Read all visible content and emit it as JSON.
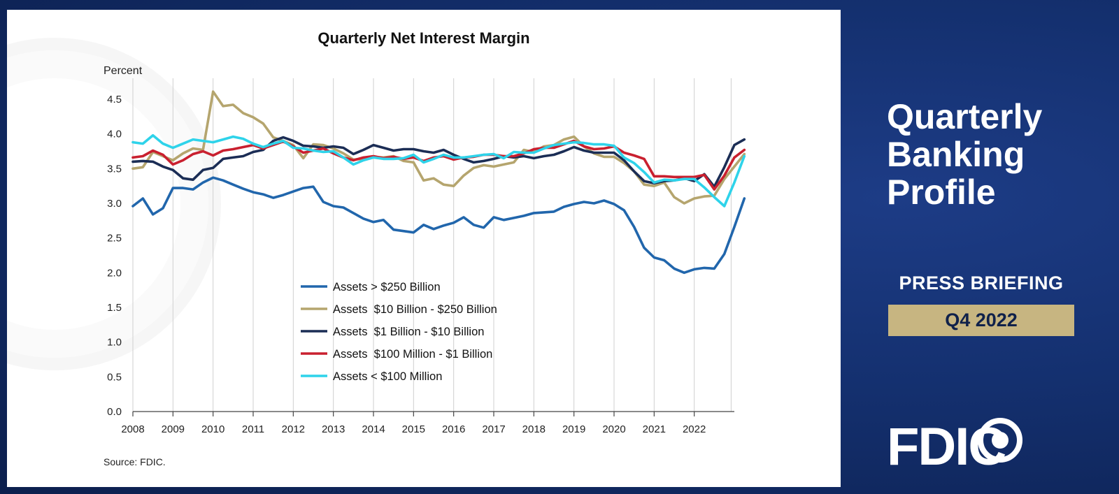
{
  "sidebar": {
    "title_lines": [
      "Quarterly",
      "Banking",
      "Profile"
    ],
    "press_label": "PRESS BRIEFING",
    "quarter_label": "Q4 2022",
    "logo_text": "FDIC"
  },
  "colors": {
    "gold": "#c7b581",
    "navy": "#12275a"
  },
  "chart_data": {
    "type": "line",
    "title": "Quarterly Net Interest Margin",
    "ylabel": "Percent",
    "source": "Source: FDIC.",
    "ylim": [
      0,
      4.5
    ],
    "yticks": [
      "4.5",
      "4.0",
      "3.5",
      "3.0",
      "2.5",
      "2.0",
      "1.5",
      "1.0",
      "0.5",
      "0.0"
    ],
    "ytick_values": [
      4.5,
      4.0,
      3.5,
      3.0,
      2.5,
      2.0,
      1.5,
      1.0,
      0.5,
      0.0
    ],
    "xticks": [
      "2008",
      "2009",
      "2010",
      "2011",
      "2012",
      "2013",
      "2014",
      "2015",
      "2016",
      "2017",
      "2018",
      "2019",
      "2020",
      "2021",
      "2022"
    ],
    "x_start": 2008.0,
    "x_step": 0.25,
    "x_max": 2023.0,
    "series": [
      {
        "name": "Assets > $250 Billion",
        "color": "#2166ac",
        "values": [
          2.96,
          3.07,
          2.84,
          2.93,
          3.22,
          3.22,
          3.2,
          3.3,
          3.37,
          3.33,
          3.27,
          3.21,
          3.16,
          3.13,
          3.08,
          3.12,
          3.17,
          3.22,
          3.24,
          3.02,
          2.96,
          2.94,
          2.86,
          2.78,
          2.73,
          2.76,
          2.62,
          2.6,
          2.58,
          2.69,
          2.63,
          2.68,
          2.72,
          2.8,
          2.69,
          2.65,
          2.8,
          2.76,
          2.79,
          2.82,
          2.86,
          2.87,
          2.88,
          2.95,
          2.99,
          3.02,
          3.0,
          3.04,
          2.99,
          2.9,
          2.66,
          2.36,
          2.22,
          2.18,
          2.06,
          2.0,
          2.05,
          2.07,
          2.06,
          2.27,
          2.66,
          3.07
        ]
      },
      {
        "name": "Assets  $10 Billion - $250 Billion",
        "color": "#b5a56e",
        "values": [
          3.5,
          3.52,
          3.74,
          3.68,
          3.62,
          3.72,
          3.79,
          3.77,
          4.61,
          4.4,
          4.42,
          4.3,
          4.24,
          4.15,
          3.95,
          3.9,
          3.84,
          3.65,
          3.85,
          3.84,
          3.79,
          3.72,
          3.63,
          3.64,
          3.67,
          3.66,
          3.68,
          3.61,
          3.59,
          3.33,
          3.36,
          3.27,
          3.25,
          3.4,
          3.51,
          3.55,
          3.53,
          3.56,
          3.59,
          3.77,
          3.74,
          3.82,
          3.84,
          3.92,
          3.96,
          3.82,
          3.72,
          3.67,
          3.67,
          3.58,
          3.46,
          3.27,
          3.25,
          3.3,
          3.09,
          3.0,
          3.07,
          3.1,
          3.11,
          3.35,
          3.53,
          3.71
        ]
      },
      {
        "name": "Assets  $1 Billion - $10 Billion",
        "color": "#1b2d55",
        "values": [
          3.6,
          3.61,
          3.6,
          3.53,
          3.48,
          3.36,
          3.34,
          3.48,
          3.51,
          3.64,
          3.66,
          3.68,
          3.74,
          3.77,
          3.9,
          3.95,
          3.9,
          3.83,
          3.82,
          3.8,
          3.82,
          3.8,
          3.71,
          3.77,
          3.84,
          3.8,
          3.76,
          3.78,
          3.78,
          3.75,
          3.73,
          3.77,
          3.7,
          3.64,
          3.59,
          3.61,
          3.64,
          3.68,
          3.66,
          3.68,
          3.65,
          3.68,
          3.7,
          3.75,
          3.81,
          3.76,
          3.73,
          3.73,
          3.73,
          3.62,
          3.46,
          3.32,
          3.29,
          3.32,
          3.33,
          3.36,
          3.32,
          3.42,
          3.24,
          3.52,
          3.84,
          3.92
        ]
      },
      {
        "name": "Assets  $100 Million - $1 Billion",
        "color": "#c9202f",
        "values": [
          3.66,
          3.68,
          3.76,
          3.7,
          3.56,
          3.62,
          3.71,
          3.75,
          3.69,
          3.76,
          3.78,
          3.81,
          3.84,
          3.79,
          3.84,
          3.89,
          3.82,
          3.73,
          3.76,
          3.79,
          3.72,
          3.66,
          3.62,
          3.66,
          3.68,
          3.65,
          3.67,
          3.64,
          3.66,
          3.61,
          3.66,
          3.68,
          3.63,
          3.66,
          3.67,
          3.7,
          3.7,
          3.68,
          3.68,
          3.72,
          3.78,
          3.8,
          3.8,
          3.85,
          3.9,
          3.82,
          3.78,
          3.79,
          3.82,
          3.73,
          3.69,
          3.64,
          3.39,
          3.39,
          3.38,
          3.38,
          3.38,
          3.41,
          3.2,
          3.4,
          3.66,
          3.77
        ]
      },
      {
        "name": "Assets < $100 Million",
        "color": "#2ed3ea",
        "values": [
          3.88,
          3.86,
          3.98,
          3.86,
          3.8,
          3.86,
          3.92,
          3.9,
          3.88,
          3.92,
          3.96,
          3.93,
          3.86,
          3.81,
          3.86,
          3.9,
          3.8,
          3.79,
          3.76,
          3.74,
          3.75,
          3.66,
          3.56,
          3.62,
          3.66,
          3.64,
          3.64,
          3.65,
          3.7,
          3.59,
          3.64,
          3.7,
          3.66,
          3.66,
          3.68,
          3.7,
          3.71,
          3.65,
          3.74,
          3.73,
          3.73,
          3.79,
          3.84,
          3.86,
          3.88,
          3.87,
          3.85,
          3.85,
          3.83,
          3.66,
          3.58,
          3.45,
          3.3,
          3.34,
          3.33,
          3.35,
          3.35,
          3.23,
          3.09,
          2.96,
          3.3,
          3.68
        ]
      }
    ],
    "legend_position": "center"
  }
}
